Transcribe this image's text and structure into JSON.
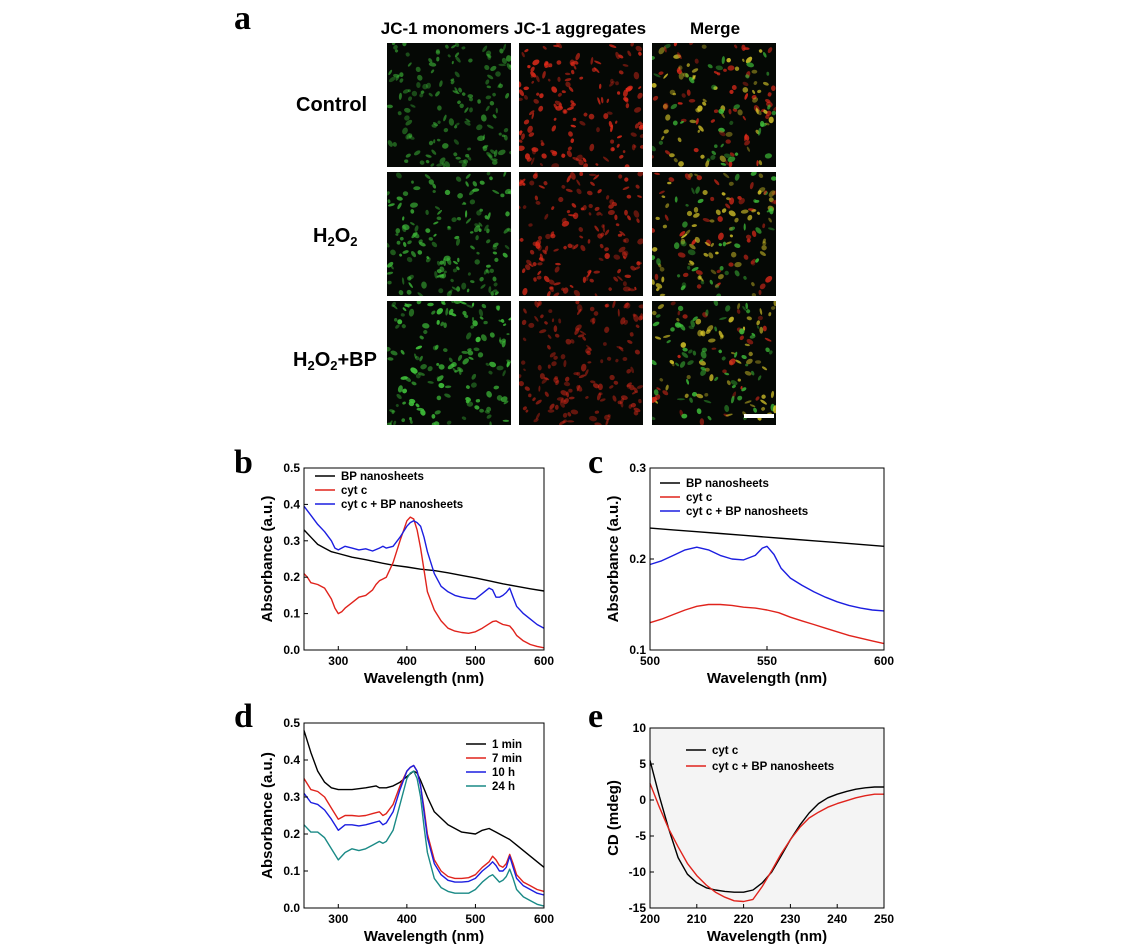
{
  "figure": {
    "panel_a": {
      "letter": "a",
      "columns": [
        "JC-1 monomers",
        "JC-1 aggregates",
        "Merge"
      ],
      "rows": [
        {
          "label": "Control",
          "green": 0.45,
          "red": 0.85
        },
        {
          "label_parts": [
            "H",
            "2",
            "O",
            "2",
            ""
          ],
          "green": 0.75,
          "red": 0.7
        },
        {
          "label_parts": [
            "H",
            "2",
            "O",
            "2",
            "+BP"
          ],
          "green": 1.0,
          "red": 0.35
        }
      ],
      "colors": {
        "green": "#3fbf3a",
        "red": "#e02a1a"
      }
    },
    "panel_b": {
      "letter": "b"
    },
    "panel_c": {
      "letter": "c"
    },
    "panel_d": {
      "letter": "d"
    },
    "panel_e": {
      "letter": "e"
    }
  },
  "chart_data": [
    {
      "id": "b",
      "type": "line",
      "xlabel": "Wavelength (nm)",
      "ylabel": "Absorbance (a.u.)",
      "xlim": [
        250,
        600
      ],
      "ylim": [
        0.0,
        0.5
      ],
      "xticks": [
        300,
        400,
        500,
        600
      ],
      "yticks": [
        0.0,
        0.1,
        0.2,
        0.3,
        0.4,
        0.5
      ],
      "xtick_labels": [
        "300",
        "400",
        "500",
        "600"
      ],
      "ytick_labels": [
        "0.0",
        "0.1",
        "0.2",
        "0.3",
        "0.4",
        "0.5"
      ],
      "legend_position": "top-left",
      "series": [
        {
          "name": "BP nanosheets",
          "color": "#000000",
          "x": [
            250,
            260,
            270,
            280,
            290,
            300,
            320,
            340,
            360,
            380,
            400,
            420,
            440,
            460,
            480,
            500,
            520,
            540,
            560,
            580,
            600
          ],
          "y": [
            0.33,
            0.31,
            0.29,
            0.28,
            0.27,
            0.265,
            0.255,
            0.248,
            0.24,
            0.233,
            0.228,
            0.222,
            0.218,
            0.212,
            0.205,
            0.198,
            0.19,
            0.182,
            0.175,
            0.168,
            0.162
          ]
        },
        {
          "name": "cyt c",
          "color": "#e0231c",
          "x": [
            250,
            255,
            260,
            270,
            280,
            290,
            295,
            300,
            305,
            310,
            320,
            330,
            340,
            350,
            355,
            360,
            365,
            370,
            380,
            390,
            400,
            405,
            410,
            415,
            420,
            425,
            430,
            440,
            450,
            460,
            470,
            480,
            490,
            500,
            510,
            520,
            525,
            530,
            535,
            540,
            545,
            550,
            555,
            560,
            570,
            580,
            590,
            600
          ],
          "y": [
            0.21,
            0.2,
            0.185,
            0.18,
            0.17,
            0.14,
            0.115,
            0.1,
            0.105,
            0.115,
            0.13,
            0.145,
            0.15,
            0.165,
            0.18,
            0.19,
            0.195,
            0.2,
            0.24,
            0.3,
            0.355,
            0.365,
            0.36,
            0.33,
            0.28,
            0.22,
            0.16,
            0.11,
            0.08,
            0.06,
            0.052,
            0.048,
            0.046,
            0.05,
            0.06,
            0.072,
            0.078,
            0.08,
            0.075,
            0.07,
            0.068,
            0.066,
            0.055,
            0.04,
            0.025,
            0.015,
            0.01,
            0.006
          ]
        },
        {
          "name": "cyt c + BP nanosheets",
          "color": "#1c1ee0",
          "x": [
            250,
            260,
            270,
            280,
            290,
            295,
            300,
            310,
            320,
            330,
            340,
            350,
            360,
            365,
            370,
            380,
            390,
            400,
            405,
            410,
            415,
            420,
            425,
            430,
            440,
            450,
            460,
            470,
            480,
            490,
            500,
            510,
            520,
            525,
            530,
            535,
            540,
            545,
            550,
            555,
            560,
            570,
            580,
            590,
            600
          ],
          "y": [
            0.395,
            0.37,
            0.345,
            0.325,
            0.3,
            0.28,
            0.275,
            0.285,
            0.28,
            0.275,
            0.278,
            0.272,
            0.28,
            0.285,
            0.28,
            0.285,
            0.31,
            0.34,
            0.35,
            0.355,
            0.35,
            0.34,
            0.31,
            0.27,
            0.21,
            0.175,
            0.16,
            0.15,
            0.145,
            0.142,
            0.14,
            0.155,
            0.17,
            0.165,
            0.145,
            0.145,
            0.15,
            0.158,
            0.17,
            0.145,
            0.12,
            0.1,
            0.085,
            0.07,
            0.06
          ]
        }
      ]
    },
    {
      "id": "c",
      "type": "line",
      "xlabel": "Wavelength (nm)",
      "ylabel": "Absorbance (a.u.)",
      "xlim": [
        500,
        600
      ],
      "ylim": [
        0.1,
        0.3
      ],
      "xticks": [
        500,
        550,
        600
      ],
      "yticks": [
        0.1,
        0.2,
        0.3
      ],
      "xtick_labels": [
        "500",
        "550",
        "600"
      ],
      "ytick_labels": [
        "0.1",
        "0.2",
        "0.3"
      ],
      "legend_position": "top-left",
      "series": [
        {
          "name": "BP nanosheets",
          "color": "#000000",
          "x": [
            500,
            510,
            520,
            530,
            540,
            550,
            560,
            570,
            580,
            590,
            600
          ],
          "y": [
            0.234,
            0.232,
            0.23,
            0.228,
            0.226,
            0.224,
            0.222,
            0.22,
            0.218,
            0.216,
            0.214
          ]
        },
        {
          "name": "cyt c",
          "color": "#e0231c",
          "x": [
            500,
            505,
            510,
            515,
            520,
            525,
            530,
            535,
            540,
            545,
            550,
            555,
            560,
            565,
            570,
            575,
            580,
            585,
            590,
            595,
            600
          ],
          "y": [
            0.13,
            0.134,
            0.139,
            0.144,
            0.148,
            0.15,
            0.15,
            0.149,
            0.147,
            0.146,
            0.144,
            0.141,
            0.136,
            0.132,
            0.128,
            0.124,
            0.12,
            0.116,
            0.113,
            0.11,
            0.107
          ]
        },
        {
          "name": "cyt c + BP nanosheets",
          "color": "#1c1ee0",
          "x": [
            500,
            505,
            510,
            515,
            520,
            525,
            530,
            535,
            540,
            545,
            548,
            550,
            553,
            556,
            560,
            565,
            570,
            575,
            580,
            585,
            590,
            595,
            600
          ],
          "y": [
            0.194,
            0.198,
            0.204,
            0.21,
            0.213,
            0.21,
            0.204,
            0.2,
            0.199,
            0.204,
            0.212,
            0.214,
            0.205,
            0.19,
            0.179,
            0.171,
            0.164,
            0.158,
            0.153,
            0.149,
            0.146,
            0.144,
            0.143
          ]
        }
      ]
    },
    {
      "id": "d",
      "type": "line",
      "xlabel": "Wavelength (nm)",
      "ylabel": "Absorbance (a.u.)",
      "xlim": [
        250,
        600
      ],
      "ylim": [
        0.0,
        0.5
      ],
      "xticks": [
        300,
        400,
        500,
        600
      ],
      "yticks": [
        0.0,
        0.1,
        0.2,
        0.3,
        0.4,
        0.5
      ],
      "xtick_labels": [
        "300",
        "400",
        "500",
        "600"
      ],
      "ytick_labels": [
        "0.0",
        "0.1",
        "0.2",
        "0.3",
        "0.4",
        "0.5"
      ],
      "legend_position": "top-right",
      "series": [
        {
          "name": "1 min",
          "color": "#000000",
          "x": [
            250,
            260,
            270,
            280,
            290,
            300,
            320,
            340,
            355,
            360,
            370,
            380,
            390,
            400,
            410,
            415,
            420,
            430,
            440,
            460,
            480,
            500,
            510,
            520,
            530,
            540,
            550,
            560,
            580,
            600
          ],
          "y": [
            0.48,
            0.42,
            0.37,
            0.34,
            0.325,
            0.32,
            0.32,
            0.325,
            0.33,
            0.325,
            0.325,
            0.33,
            0.34,
            0.355,
            0.37,
            0.365,
            0.345,
            0.3,
            0.26,
            0.225,
            0.205,
            0.2,
            0.21,
            0.215,
            0.205,
            0.195,
            0.185,
            0.17,
            0.14,
            0.11
          ]
        },
        {
          "name": "7 min",
          "color": "#e0231c",
          "x": [
            250,
            260,
            270,
            280,
            290,
            300,
            310,
            320,
            330,
            340,
            350,
            360,
            365,
            370,
            380,
            390,
            400,
            405,
            410,
            415,
            420,
            425,
            430,
            440,
            450,
            460,
            470,
            480,
            490,
            500,
            510,
            520,
            525,
            530,
            535,
            540,
            545,
            550,
            555,
            560,
            570,
            580,
            590,
            600
          ],
          "y": [
            0.35,
            0.32,
            0.315,
            0.3,
            0.27,
            0.24,
            0.25,
            0.25,
            0.248,
            0.25,
            0.255,
            0.26,
            0.25,
            0.255,
            0.28,
            0.33,
            0.37,
            0.38,
            0.385,
            0.37,
            0.33,
            0.27,
            0.2,
            0.13,
            0.1,
            0.085,
            0.08,
            0.08,
            0.082,
            0.09,
            0.11,
            0.125,
            0.14,
            0.13,
            0.115,
            0.11,
            0.12,
            0.145,
            0.12,
            0.09,
            0.07,
            0.06,
            0.05,
            0.045
          ]
        },
        {
          "name": "10 h",
          "color": "#1c1ee0",
          "x": [
            250,
            260,
            270,
            280,
            290,
            300,
            310,
            320,
            330,
            340,
            350,
            360,
            365,
            370,
            380,
            390,
            400,
            405,
            410,
            415,
            420,
            425,
            430,
            440,
            450,
            460,
            470,
            480,
            490,
            500,
            510,
            520,
            525,
            530,
            535,
            540,
            545,
            550,
            555,
            560,
            570,
            580,
            590,
            600
          ],
          "y": [
            0.31,
            0.285,
            0.28,
            0.265,
            0.24,
            0.21,
            0.225,
            0.225,
            0.222,
            0.225,
            0.23,
            0.235,
            0.225,
            0.23,
            0.26,
            0.32,
            0.37,
            0.38,
            0.385,
            0.37,
            0.33,
            0.26,
            0.19,
            0.12,
            0.09,
            0.075,
            0.07,
            0.07,
            0.072,
            0.08,
            0.1,
            0.115,
            0.125,
            0.115,
            0.1,
            0.1,
            0.11,
            0.14,
            0.11,
            0.08,
            0.06,
            0.05,
            0.04,
            0.035
          ]
        },
        {
          "name": "24 h",
          "color": "#1a8a86",
          "x": [
            250,
            260,
            270,
            280,
            290,
            300,
            310,
            320,
            330,
            340,
            350,
            360,
            365,
            370,
            380,
            390,
            400,
            405,
            410,
            415,
            420,
            425,
            430,
            440,
            450,
            460,
            470,
            480,
            490,
            500,
            510,
            520,
            525,
            530,
            535,
            540,
            545,
            550,
            555,
            560,
            570,
            580,
            590,
            600
          ],
          "y": [
            0.225,
            0.205,
            0.205,
            0.19,
            0.16,
            0.13,
            0.15,
            0.16,
            0.155,
            0.16,
            0.17,
            0.18,
            0.175,
            0.18,
            0.21,
            0.28,
            0.35,
            0.365,
            0.37,
            0.35,
            0.3,
            0.22,
            0.15,
            0.08,
            0.055,
            0.045,
            0.04,
            0.04,
            0.04,
            0.05,
            0.07,
            0.085,
            0.09,
            0.08,
            0.07,
            0.075,
            0.085,
            0.105,
            0.08,
            0.05,
            0.03,
            0.02,
            0.01,
            0.005
          ]
        }
      ]
    },
    {
      "id": "e",
      "type": "line",
      "xlabel": "Wavelength (nm)",
      "ylabel": "CD (mdeg)",
      "xlim": [
        200,
        250
      ],
      "ylim": [
        -15,
        10
      ],
      "xticks": [
        200,
        210,
        220,
        230,
        240,
        250
      ],
      "yticks": [
        -15,
        -10,
        -5,
        0,
        5,
        10
      ],
      "xtick_labels": [
        "200",
        "210",
        "220",
        "230",
        "240",
        "250"
      ],
      "ytick_labels": [
        "-15",
        "-10",
        "-5",
        "0",
        "5",
        "10"
      ],
      "legend_position": "top-left",
      "series": [
        {
          "name": "cyt c",
          "color": "#000000",
          "x": [
            200,
            202,
            204,
            206,
            208,
            210,
            212,
            214,
            216,
            218,
            220,
            222,
            224,
            226,
            228,
            230,
            232,
            234,
            236,
            238,
            240,
            242,
            244,
            246,
            248,
            250
          ],
          "y": [
            5.5,
            0.5,
            -4.0,
            -8.0,
            -10.3,
            -11.5,
            -12.2,
            -12.5,
            -12.7,
            -12.8,
            -12.8,
            -12.5,
            -11.5,
            -10.0,
            -7.8,
            -5.5,
            -3.5,
            -1.8,
            -0.5,
            0.3,
            0.8,
            1.2,
            1.5,
            1.7,
            1.8,
            1.8
          ]
        },
        {
          "name": "cyt c + BP nanosheets",
          "color": "#e0231c",
          "x": [
            200,
            202,
            204,
            206,
            208,
            210,
            212,
            214,
            216,
            218,
            220,
            222,
            224,
            226,
            228,
            230,
            232,
            234,
            236,
            238,
            240,
            242,
            244,
            246,
            248,
            250
          ],
          "y": [
            2.3,
            -1.0,
            -4.0,
            -6.5,
            -8.8,
            -10.5,
            -11.8,
            -12.8,
            -13.5,
            -14.0,
            -14.1,
            -13.8,
            -12.0,
            -9.8,
            -7.5,
            -5.5,
            -3.8,
            -2.5,
            -1.7,
            -1.0,
            -0.5,
            -0.1,
            0.3,
            0.6,
            0.8,
            0.8
          ]
        }
      ]
    }
  ]
}
